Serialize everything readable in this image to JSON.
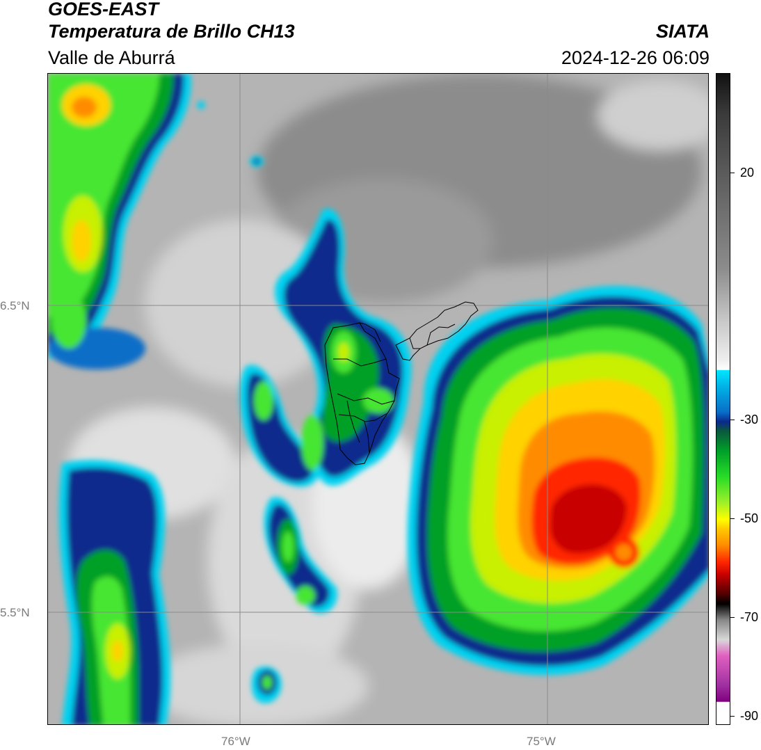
{
  "header": {
    "source": "GOES-EAST",
    "product": "Temperatura de Brillo CH13",
    "region": "Valle de Aburrá",
    "organization": "SIATA",
    "datetime": "2024-12-26 06:09"
  },
  "map": {
    "gridlines": {
      "latitudes": [
        "6.5°N",
        "5.5°N"
      ],
      "longitudes": [
        "76°W",
        "75°W"
      ]
    },
    "colors": {
      "background_cloudfree": "#b4b4b4",
      "cold_tops": "#ff2800",
      "moderate": "#28dc28",
      "edge": "#0a2a8c",
      "gridline": "#8a8a8a"
    }
  },
  "colorbar": {
    "ticks": [
      "20",
      "-30",
      "-50",
      "-70",
      "-90"
    ]
  }
}
